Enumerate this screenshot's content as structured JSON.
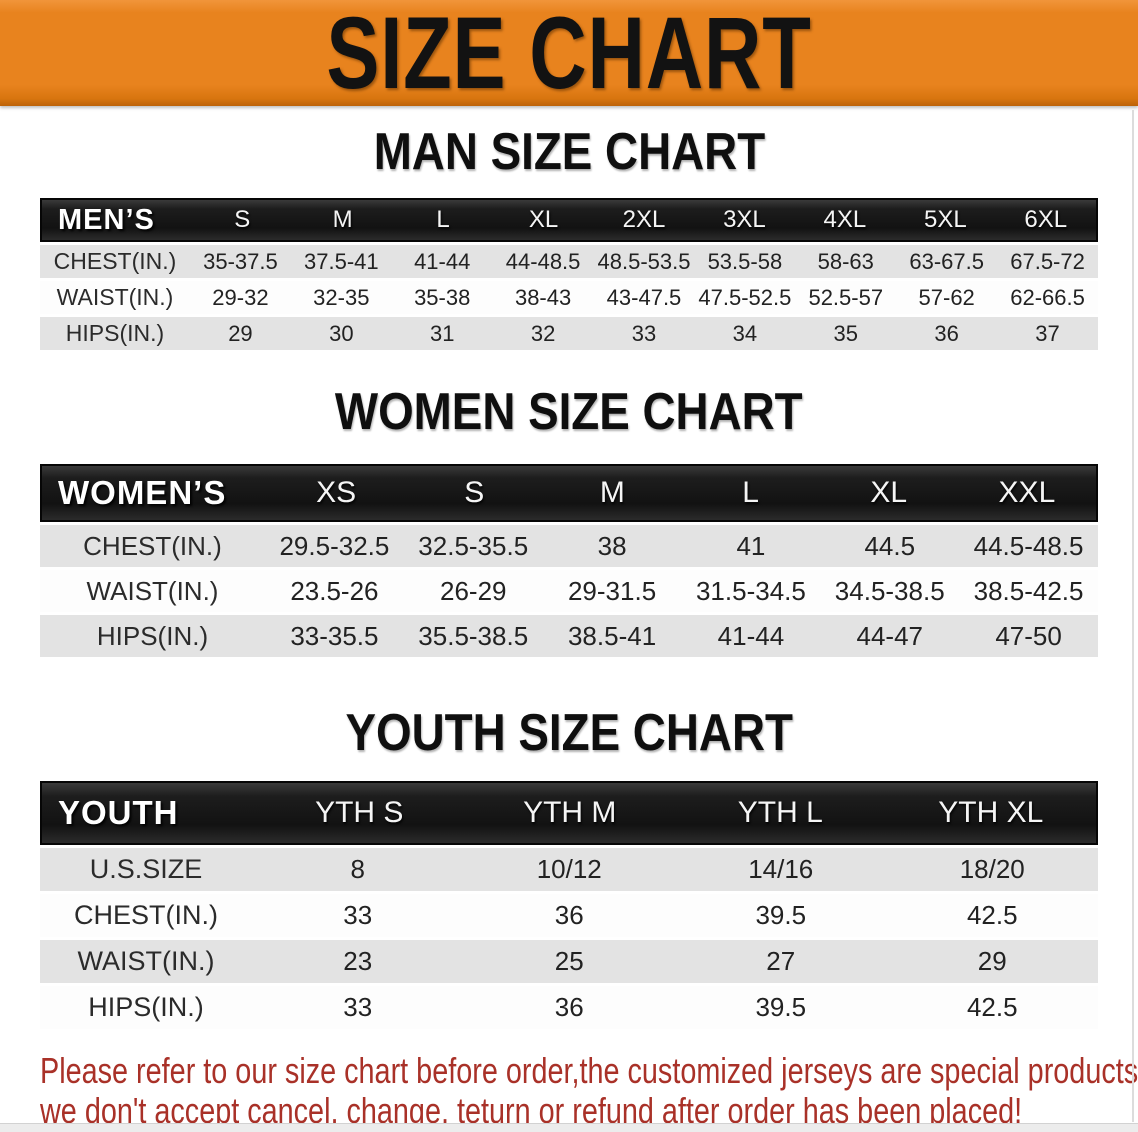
{
  "banner": {
    "title": "SIZE CHART",
    "bg_color": "#E8831E",
    "text_color": "#121212"
  },
  "sections": [
    {
      "heading": "MAN SIZE CHART",
      "group_label": "MEN’S",
      "columns": [
        "S",
        "M",
        "L",
        "XL",
        "2XL",
        "3XL",
        "4XL",
        "5XL",
        "6XL"
      ],
      "rows": [
        {
          "label": "CHEST(IN.)",
          "values": [
            "35-37.5",
            "37.5-41",
            "41-44",
            "44-48.5",
            "48.5-53.5",
            "53.5-58",
            "58-63",
            "63-67.5",
            "67.5-72"
          ]
        },
        {
          "label": "WAIST(IN.)",
          "values": [
            "29-32",
            "32-35",
            "35-38",
            "38-43",
            "43-47.5",
            "47.5-52.5",
            "52.5-57",
            "57-62",
            "62-66.5"
          ]
        },
        {
          "label": "HIPS(IN.)",
          "values": [
            "29",
            "30",
            "31",
            "32",
            "33",
            "34",
            "35",
            "36",
            "37"
          ]
        }
      ]
    },
    {
      "heading": "WOMEN SIZE CHART",
      "group_label": "WOMEN’S",
      "columns": [
        "XS",
        "S",
        "M",
        "L",
        "XL",
        "XXL"
      ],
      "rows": [
        {
          "label": "CHEST(IN.)",
          "values": [
            "29.5-32.5",
            "32.5-35.5",
            "38",
            "41",
            "44.5",
            "44.5-48.5"
          ]
        },
        {
          "label": "WAIST(IN.)",
          "values": [
            "23.5-26",
            "26-29",
            "29-31.5",
            "31.5-34.5",
            "34.5-38.5",
            "38.5-42.5"
          ]
        },
        {
          "label": "HIPS(IN.)",
          "values": [
            "33-35.5",
            "35.5-38.5",
            "38.5-41",
            "41-44",
            "44-47",
            "47-50"
          ]
        }
      ]
    },
    {
      "heading": "YOUTH SIZE CHART",
      "group_label": "YOUTH",
      "columns": [
        "YTH S",
        "YTH M",
        "YTH L",
        "YTH XL"
      ],
      "rows": [
        {
          "label": "U.S.SIZE",
          "values": [
            "8",
            "10/12",
            "14/16",
            "18/20"
          ]
        },
        {
          "label": "CHEST(IN.)",
          "values": [
            "33",
            "36",
            "39.5",
            "42.5"
          ]
        },
        {
          "label": "WAIST(IN.)",
          "values": [
            "23",
            "25",
            "27",
            "29"
          ]
        },
        {
          "label": "HIPS(IN.)",
          "values": [
            "33",
            "36",
            "39.5",
            "42.5"
          ]
        }
      ]
    }
  ],
  "disclaimer": {
    "lines": [
      "Please refer to our size chart before order,the customized jerseys are special products,",
      "we don't accept cancel, change, teturn or refund after order has been placed!"
    ],
    "color": "#A93128"
  }
}
